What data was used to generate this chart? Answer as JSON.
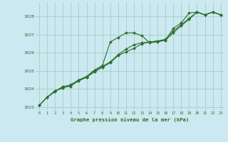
{
  "xlabel": "Graphe pression niveau de la mer (hPa)",
  "background_color": "#cce8f0",
  "grid_color": "#99ccbb",
  "line_color": "#2d6e2d",
  "xlim": [
    -0.5,
    23.5
  ],
  "ylim": [
    1022.8,
    1028.8
  ],
  "yticks": [
    1023,
    1024,
    1025,
    1026,
    1027,
    1028
  ],
  "xticks": [
    0,
    1,
    2,
    3,
    4,
    5,
    6,
    7,
    8,
    9,
    10,
    11,
    12,
    13,
    14,
    15,
    16,
    17,
    18,
    19,
    20,
    21,
    22,
    23
  ],
  "series1": [
    [
      0,
      1023.1
    ],
    [
      1,
      1023.55
    ],
    [
      2,
      1023.85
    ],
    [
      3,
      1024.15
    ],
    [
      4,
      1024.2
    ],
    [
      5,
      1024.45
    ],
    [
      6,
      1024.65
    ],
    [
      7,
      1024.95
    ],
    [
      8,
      1025.2
    ],
    [
      9,
      1025.45
    ],
    [
      10,
      1025.85
    ],
    [
      11,
      1026.05
    ],
    [
      12,
      1026.25
    ],
    [
      13,
      1026.5
    ],
    [
      14,
      1026.6
    ],
    [
      15,
      1026.65
    ],
    [
      16,
      1026.7
    ],
    [
      17,
      1027.1
    ],
    [
      18,
      1027.5
    ],
    [
      19,
      1027.85
    ],
    [
      20,
      1028.25
    ],
    [
      21,
      1028.1
    ],
    [
      22,
      1028.25
    ],
    [
      23,
      1028.1
    ]
  ],
  "series2": [
    [
      0,
      1023.1
    ],
    [
      1,
      1023.55
    ],
    [
      2,
      1023.9
    ],
    [
      3,
      1024.05
    ],
    [
      4,
      1024.25
    ],
    [
      5,
      1024.5
    ],
    [
      6,
      1024.7
    ],
    [
      7,
      1025.05
    ],
    [
      8,
      1025.3
    ],
    [
      9,
      1026.6
    ],
    [
      10,
      1026.85
    ],
    [
      11,
      1027.1
    ],
    [
      12,
      1027.1
    ],
    [
      13,
      1026.95
    ],
    [
      14,
      1026.55
    ],
    [
      15,
      1026.6
    ],
    [
      16,
      1026.7
    ],
    [
      17,
      1027.35
    ],
    [
      18,
      1027.65
    ],
    [
      19,
      1028.2
    ],
    [
      20,
      1028.25
    ],
    [
      21,
      1028.1
    ],
    [
      22,
      1028.25
    ],
    [
      23,
      1028.1
    ]
  ],
  "series3": [
    [
      0,
      1023.1
    ],
    [
      1,
      1023.55
    ],
    [
      2,
      1023.9
    ],
    [
      3,
      1024.1
    ],
    [
      4,
      1024.15
    ],
    [
      5,
      1024.5
    ],
    [
      6,
      1024.65
    ],
    [
      7,
      1025.0
    ],
    [
      8,
      1025.25
    ],
    [
      9,
      1025.5
    ],
    [
      10,
      1025.9
    ],
    [
      11,
      1026.2
    ],
    [
      12,
      1026.45
    ],
    [
      13,
      1026.55
    ],
    [
      14,
      1026.6
    ],
    [
      15,
      1026.65
    ],
    [
      16,
      1026.75
    ],
    [
      17,
      1027.2
    ],
    [
      18,
      1027.55
    ],
    [
      19,
      1027.9
    ],
    [
      20,
      1028.25
    ],
    [
      21,
      1028.1
    ],
    [
      22,
      1028.25
    ],
    [
      23,
      1028.1
    ]
  ]
}
